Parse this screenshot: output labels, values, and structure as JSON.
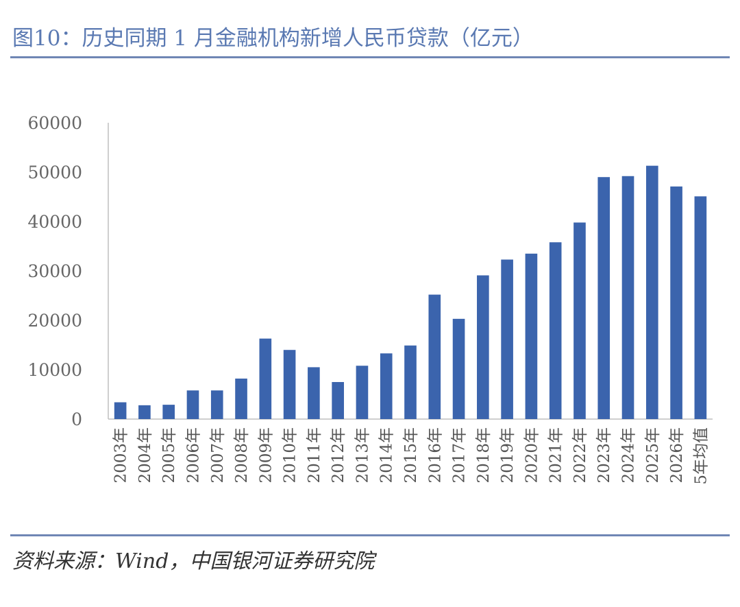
{
  "header": {
    "title": "图10：历史同期 1 月金融机构新增人民币贷款（亿元）"
  },
  "footer": {
    "source": "资料来源：Wind，中国银河证券研究院"
  },
  "colors": {
    "bar": "#3b64ad",
    "title": "#5a79b2",
    "rule": "#6f86b4",
    "axis": "#bfbfbf"
  },
  "chart_data": {
    "type": "bar",
    "title": "历史同期 1 月金融机构新增人民币贷款（亿元）",
    "xlabel": "",
    "ylabel": "",
    "ylim": [
      0,
      60000
    ],
    "yticks": [
      "0",
      "10000",
      "20000",
      "30000",
      "40000",
      "50000",
      "60000"
    ],
    "grid": false,
    "categories": [
      "2003年",
      "2004年",
      "2005年",
      "2006年",
      "2007年",
      "2008年",
      "2009年",
      "2010年",
      "2011年",
      "2012年",
      "2013年",
      "2014年",
      "2015年",
      "2016年",
      "2017年",
      "2018年",
      "2019年",
      "2020年",
      "2021年",
      "2022年",
      "2023年",
      "2024年",
      "2025年",
      "2026年",
      "5年均值"
    ],
    "values": [
      3400,
      2800,
      2900,
      5800,
      5800,
      8200,
      16300,
      14000,
      10500,
      7500,
      10800,
      13300,
      14900,
      25200,
      20300,
      29100,
      32300,
      33500,
      35800,
      39800,
      49000,
      49200,
      51300,
      47100,
      45100
    ]
  }
}
